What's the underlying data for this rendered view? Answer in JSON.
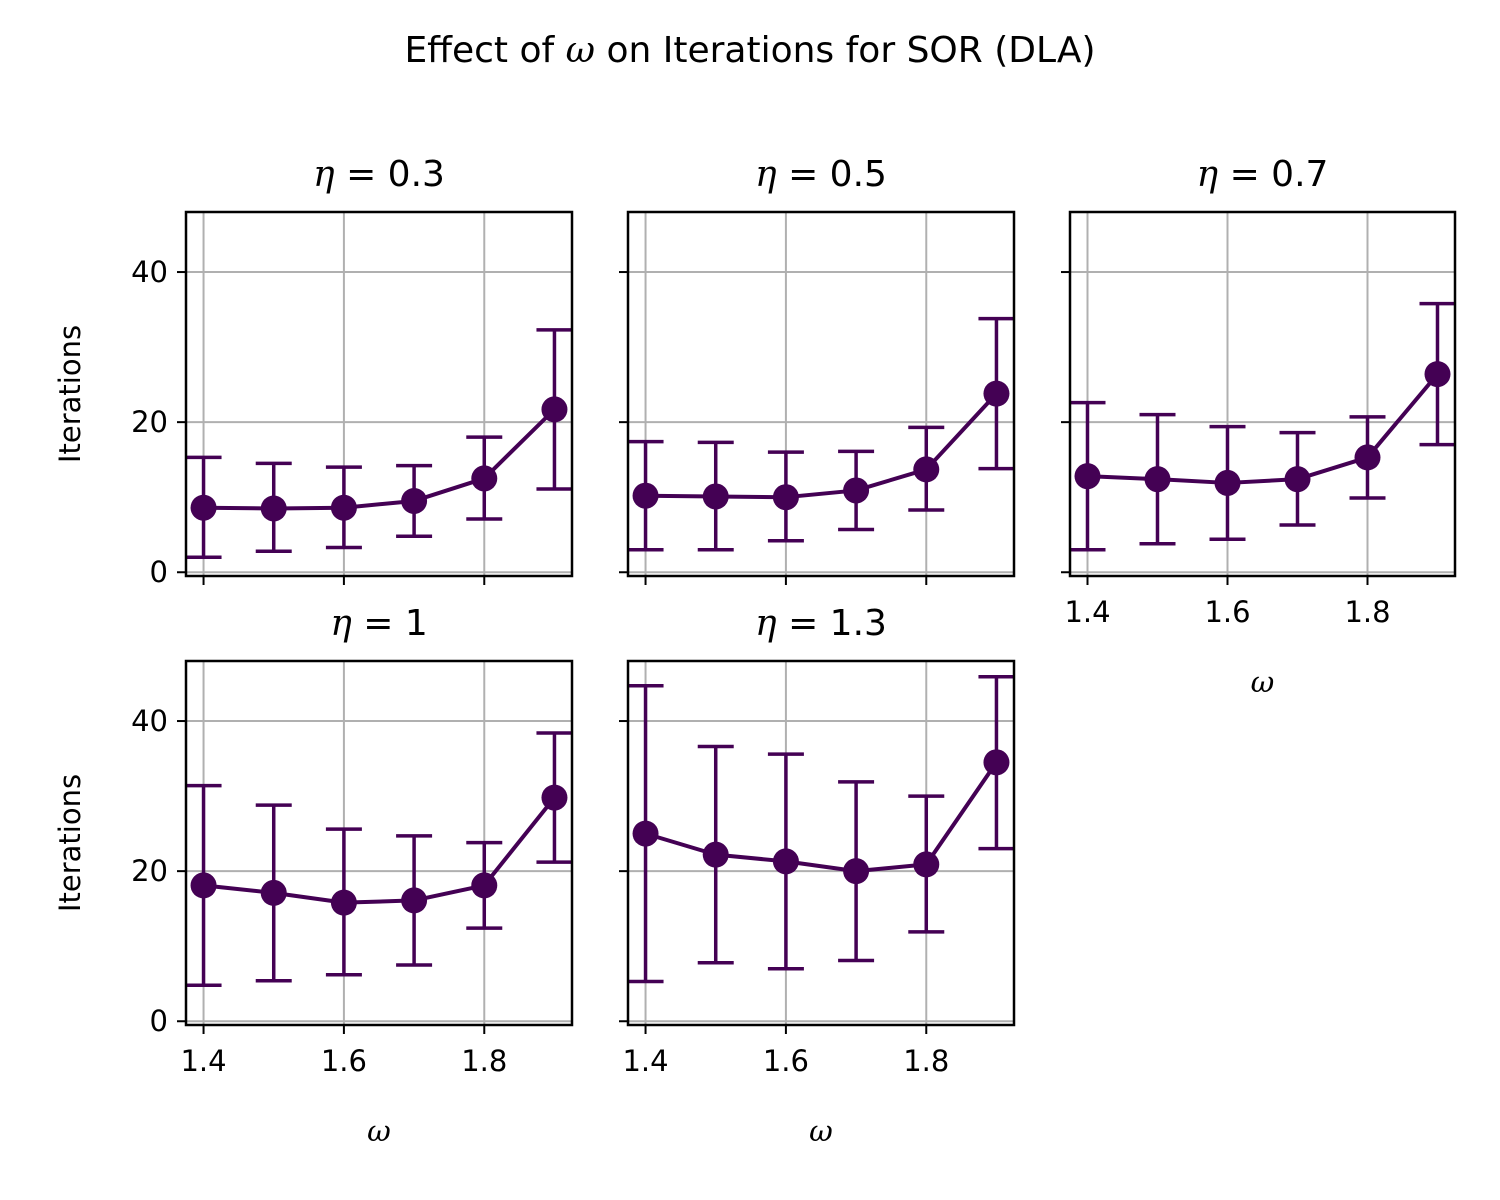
{
  "chart_data": {
    "type": "line",
    "title_parts": [
      "Effect of ",
      "ω",
      " on Iterations for SOR (DLA)"
    ],
    "x": [
      1.4,
      1.5,
      1.6,
      1.7,
      1.8,
      1.9
    ],
    "xlim": [
      1.375,
      1.925
    ],
    "ylim": [
      -0.5,
      48
    ],
    "xticks": [
      1.4,
      1.6,
      1.8
    ],
    "xtick_labels": [
      "1.4",
      "1.6",
      "1.8"
    ],
    "yticks": [
      0,
      20,
      40
    ],
    "ytick_labels": [
      "0",
      "20",
      "40"
    ],
    "xlabel": "ω",
    "ylabel": "Iterations",
    "grid": true,
    "color": "#440154",
    "panels": [
      {
        "symbol": "η",
        "value_label": "0.3",
        "y": [
          8.6,
          8.5,
          8.6,
          9.5,
          12.5,
          21.7
        ],
        "err_low": [
          2.0,
          2.8,
          3.3,
          4.8,
          7.1,
          11.1
        ],
        "err_high": [
          15.3,
          14.5,
          14.0,
          14.2,
          18.0,
          32.3
        ]
      },
      {
        "symbol": "η",
        "value_label": "0.5",
        "y": [
          10.2,
          10.1,
          10.0,
          10.9,
          13.7,
          23.8
        ],
        "err_low": [
          3.0,
          3.0,
          4.2,
          5.7,
          8.3,
          13.8
        ],
        "err_high": [
          17.4,
          17.3,
          16.0,
          16.1,
          19.3,
          33.8
        ]
      },
      {
        "symbol": "η",
        "value_label": "0.7",
        "y": [
          12.8,
          12.4,
          11.9,
          12.4,
          15.3,
          26.4
        ],
        "err_low": [
          3.0,
          3.8,
          4.4,
          6.3,
          9.9,
          17.0
        ],
        "err_high": [
          22.6,
          21.0,
          19.4,
          18.6,
          20.7,
          35.8
        ]
      },
      {
        "symbol": "η",
        "value_label": "1",
        "y": [
          18.1,
          17.1,
          15.8,
          16.1,
          18.1,
          29.8
        ],
        "err_low": [
          4.8,
          5.4,
          6.2,
          7.5,
          12.4,
          21.2
        ],
        "err_high": [
          31.4,
          28.8,
          25.6,
          24.7,
          23.8,
          38.4
        ]
      },
      {
        "symbol": "η",
        "value_label": "1.3",
        "y": [
          25.0,
          22.2,
          21.3,
          20.0,
          20.9,
          34.5
        ],
        "err_low": [
          5.3,
          7.8,
          7.0,
          8.1,
          11.9,
          23.0
        ],
        "err_high": [
          44.7,
          36.6,
          35.6,
          31.9,
          30.0,
          45.9
        ]
      }
    ]
  }
}
